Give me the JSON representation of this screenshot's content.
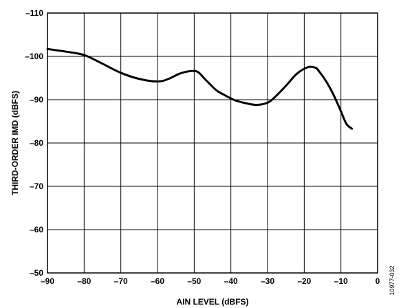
{
  "chart_data": {
    "type": "line",
    "title": "",
    "xlabel": "AIN LEVEL (dBFS)",
    "ylabel": "THIRD-ORDER IMD (dBFS)",
    "xlim": [
      -90,
      0
    ],
    "ylim": [
      -50,
      -110
    ],
    "x_ticks": [
      -90,
      -80,
      -70,
      -60,
      -50,
      -40,
      -30,
      -20,
      -10,
      0
    ],
    "x_tick_labels": [
      "–90",
      "–80",
      "–70",
      "–60",
      "–50",
      "–40",
      "–30",
      "–20",
      "–10",
      "0"
    ],
    "y_ticks": [
      -110,
      -100,
      -90,
      -80,
      -70,
      -60,
      -50
    ],
    "y_tick_labels": [
      "–110",
      "–100",
      "–90",
      "–80",
      "–70",
      "–60",
      "–50"
    ],
    "grid": true,
    "series": [
      {
        "x": [
          -90,
          -85,
          -80,
          -75,
          -70,
          -65,
          -60,
          -57,
          -54,
          -51,
          -49,
          -47,
          -44,
          -42,
          -39,
          -36,
          -33,
          -30,
          -28,
          -25,
          -22,
          -19,
          -17,
          -16,
          -14,
          -12,
          -10,
          -8.5,
          -7
        ],
        "y": [
          -101.7,
          -101.1,
          -100.3,
          -98.3,
          -96.2,
          -94.8,
          -94.2,
          -94.8,
          -96.0,
          -96.6,
          -96.4,
          -94.7,
          -92.2,
          -91.2,
          -89.9,
          -89.2,
          -88.8,
          -89.3,
          -90.6,
          -93.2,
          -96.0,
          -97.5,
          -97.4,
          -96.6,
          -94.2,
          -91.1,
          -87.3,
          -84.4,
          -83.3
        ],
        "color": "#000000"
      }
    ],
    "figure_id": "10977-032"
  }
}
